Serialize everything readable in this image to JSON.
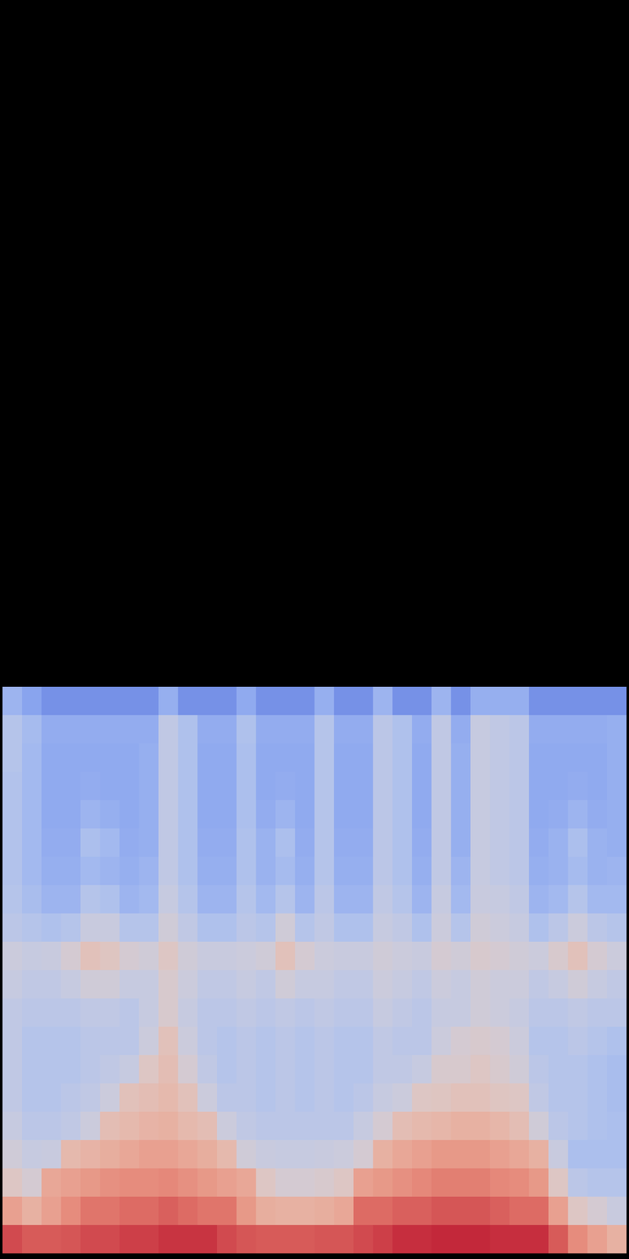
{
  "chart_data": {
    "type": "heatmap",
    "tick_labels": false,
    "zlim": [
      0,
      100
    ],
    "cells": [
      [
        30,
        24,
        18,
        18,
        18,
        18,
        18,
        18,
        28,
        18,
        18,
        18,
        26,
        18,
        18,
        18,
        28,
        18,
        18,
        30,
        18,
        18,
        30,
        18,
        28,
        28,
        28,
        18,
        18,
        18,
        18,
        18
      ],
      [
        38,
        33,
        27,
        27,
        27,
        27,
        27,
        27,
        42,
        36,
        27,
        27,
        36,
        27,
        27,
        27,
        38,
        27,
        27,
        40,
        36,
        27,
        42,
        27,
        44,
        42,
        40,
        27,
        27,
        27,
        27,
        28
      ],
      [
        38,
        32,
        26,
        26,
        26,
        26,
        26,
        28,
        42,
        36,
        26,
        26,
        35,
        26,
        26,
        26,
        38,
        26,
        26,
        40,
        36,
        26,
        42,
        28,
        44,
        42,
        40,
        26,
        26,
        26,
        26,
        28
      ],
      [
        37,
        32,
        26,
        26,
        27,
        26,
        26,
        28,
        42,
        36,
        26,
        26,
        35,
        26,
        27,
        26,
        38,
        26,
        26,
        40,
        36,
        26,
        42,
        28,
        44,
        42,
        40,
        26,
        26,
        27,
        26,
        28
      ],
      [
        37,
        32,
        26,
        26,
        30,
        28,
        26,
        28,
        42,
        36,
        26,
        26,
        35,
        27,
        30,
        26,
        38,
        26,
        26,
        40,
        36,
        26,
        42,
        28,
        44,
        42,
        40,
        26,
        27,
        30,
        27,
        28
      ],
      [
        37,
        32,
        27,
        27,
        35,
        32,
        27,
        28,
        42,
        36,
        27,
        27,
        36,
        29,
        35,
        27,
        38,
        27,
        27,
        40,
        36,
        27,
        42,
        28,
        44,
        42,
        40,
        27,
        29,
        35,
        29,
        28
      ],
      [
        37,
        32,
        28,
        28,
        32,
        30,
        28,
        30,
        42,
        36,
        28,
        28,
        36,
        29,
        33,
        28,
        38,
        28,
        28,
        40,
        36,
        28,
        42,
        30,
        44,
        42,
        40,
        28,
        29,
        33,
        29,
        30
      ],
      [
        38,
        34,
        30,
        30,
        38,
        36,
        30,
        32,
        44,
        38,
        30,
        30,
        38,
        32,
        38,
        30,
        40,
        30,
        30,
        42,
        38,
        30,
        44,
        32,
        45,
        44,
        42,
        30,
        32,
        38,
        32,
        32
      ],
      [
        40,
        38,
        36,
        38,
        45,
        45,
        38,
        38,
        48,
        42,
        36,
        36,
        40,
        38,
        48,
        38,
        42,
        36,
        36,
        44,
        42,
        36,
        46,
        38,
        48,
        46,
        44,
        36,
        40,
        46,
        40,
        38
      ],
      [
        46,
        44,
        45,
        50,
        58,
        56,
        50,
        48,
        55,
        48,
        45,
        45,
        46,
        48,
        58,
        50,
        46,
        45,
        45,
        48,
        46,
        45,
        50,
        48,
        52,
        50,
        48,
        46,
        52,
        58,
        50,
        46
      ],
      [
        44,
        42,
        42,
        44,
        48,
        48,
        44,
        44,
        52,
        46,
        42,
        42,
        44,
        42,
        48,
        44,
        44,
        42,
        42,
        46,
        44,
        42,
        46,
        44,
        48,
        46,
        46,
        42,
        44,
        48,
        44,
        42
      ],
      [
        42,
        40,
        40,
        40,
        42,
        42,
        40,
        44,
        52,
        44,
        40,
        40,
        42,
        40,
        42,
        40,
        42,
        40,
        40,
        44,
        42,
        40,
        44,
        44,
        48,
        46,
        44,
        40,
        40,
        42,
        40,
        40
      ],
      [
        42,
        38,
        38,
        38,
        40,
        40,
        40,
        46,
        58,
        46,
        40,
        38,
        40,
        38,
        40,
        38,
        40,
        38,
        38,
        42,
        40,
        40,
        46,
        50,
        52,
        50,
        46,
        38,
        38,
        40,
        38,
        36
      ],
      [
        42,
        38,
        38,
        38,
        40,
        42,
        44,
        55,
        60,
        50,
        42,
        38,
        40,
        38,
        40,
        38,
        40,
        38,
        38,
        42,
        42,
        44,
        52,
        52,
        55,
        52,
        48,
        40,
        38,
        38,
        36,
        34
      ],
      [
        42,
        38,
        38,
        40,
        42,
        46,
        58,
        60,
        62,
        58,
        46,
        40,
        40,
        38,
        40,
        38,
        40,
        38,
        40,
        44,
        46,
        55,
        56,
        58,
        58,
        56,
        55,
        42,
        38,
        38,
        36,
        34
      ],
      [
        44,
        40,
        40,
        42,
        46,
        60,
        62,
        64,
        65,
        62,
        60,
        46,
        42,
        40,
        40,
        40,
        40,
        40,
        44,
        50,
        60,
        62,
        63,
        65,
        65,
        63,
        60,
        48,
        40,
        38,
        36,
        35
      ],
      [
        48,
        44,
        45,
        62,
        64,
        66,
        68,
        70,
        70,
        68,
        66,
        62,
        48,
        45,
        44,
        44,
        45,
        46,
        50,
        65,
        68,
        70,
        72,
        72,
        72,
        70,
        68,
        65,
        45,
        35,
        35,
        35
      ],
      [
        55,
        50,
        68,
        70,
        72,
        74,
        75,
        75,
        76,
        74,
        72,
        70,
        68,
        55,
        50,
        50,
        52,
        55,
        70,
        72,
        74,
        76,
        78,
        78,
        78,
        76,
        75,
        72,
        55,
        40,
        38,
        38
      ],
      [
        70,
        65,
        70,
        75,
        80,
        80,
        82,
        82,
        84,
        82,
        80,
        80,
        72,
        66,
        65,
        65,
        66,
        68,
        82,
        82,
        84,
        84,
        86,
        86,
        86,
        84,
        82,
        82,
        70,
        55,
        50,
        45
      ],
      [
        88,
        85,
        85,
        86,
        88,
        88,
        90,
        90,
        92,
        92,
        92,
        88,
        86,
        85,
        85,
        85,
        86,
        86,
        88,
        90,
        93,
        93,
        94,
        94,
        94,
        93,
        93,
        93,
        85,
        75,
        70,
        65
      ]
    ]
  }
}
